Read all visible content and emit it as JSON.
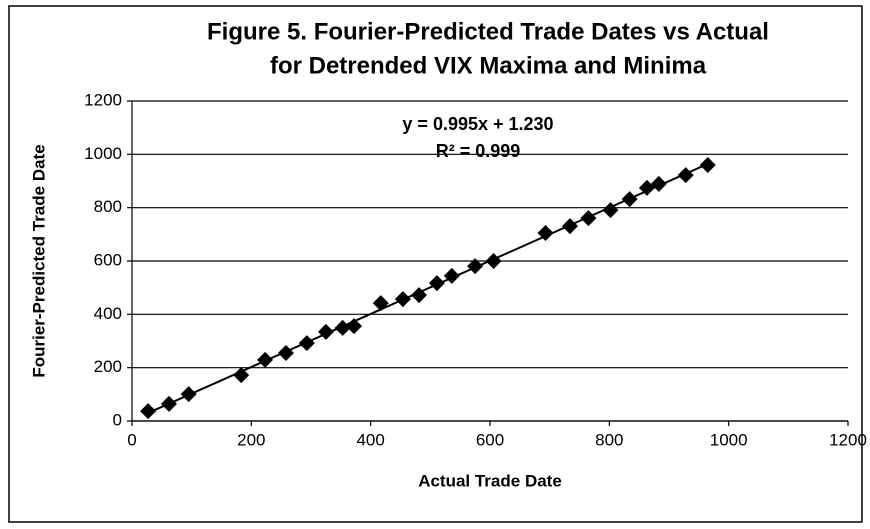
{
  "chart_data": {
    "type": "scatter",
    "title": [
      "Figure 5. Fourier-Predicted Trade Dates vs Actual",
      "for Detrended VIX Maxima and Minima"
    ],
    "xlabel": "Actual Trade Date",
    "ylabel": "Fourier-Predicted Trade Date",
    "annotations": [
      "y = 0.995x + 1.230",
      "R² = 0.999"
    ],
    "trendline": true,
    "color": "#000000",
    "grid": true,
    "x": [
      27,
      62,
      95,
      183,
      223,
      258,
      293,
      325,
      353,
      372,
      417,
      454,
      481,
      511,
      536,
      575,
      606,
      693,
      734,
      765,
      802,
      834,
      863,
      883,
      928,
      965
    ],
    "values": [
      37,
      64,
      101,
      172,
      229,
      255,
      292,
      334,
      349,
      356,
      442,
      457,
      472,
      517,
      544,
      581,
      600,
      705,
      731,
      761,
      791,
      832,
      874,
      889,
      922,
      960
    ],
    "xlim": [
      0,
      1200
    ],
    "xticks": [
      0,
      200,
      400,
      600,
      800,
      1000,
      1200
    ],
    "ylim": [
      0,
      1200
    ],
    "yticks": [
      0,
      200,
      400,
      600,
      800,
      1000,
      1200
    ]
  }
}
